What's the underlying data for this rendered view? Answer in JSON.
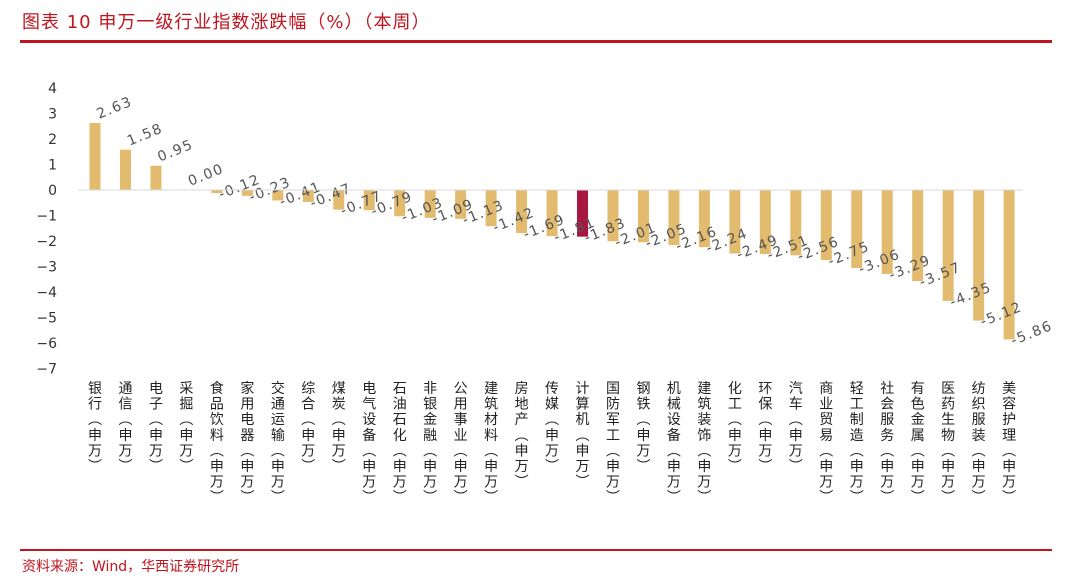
{
  "header": {
    "title": "图表 10 申万一级行业指数涨跌幅（%）（本周）"
  },
  "footer": {
    "source": "资料来源：Wind，华西证券研究所"
  },
  "colors": {
    "bar": "#e2bb6f",
    "highlight": "#a8173f",
    "accent": "#c0141e"
  },
  "chart_data": {
    "type": "bar",
    "title": "申万一级行业指数涨跌幅（%）（本周）",
    "xlabel": "",
    "ylabel": "",
    "ylim": [
      -7,
      4
    ],
    "yticks": [
      4,
      3,
      2,
      1,
      0,
      -1,
      -2,
      -3,
      -4,
      -5,
      -6,
      -7
    ],
    "grid": false,
    "legend": "none",
    "highlight_category": "计算机(申万)",
    "categories": [
      "银行(申万)",
      "通信(申万)",
      "电子(申万)",
      "采掘(申万)",
      "食品饮料(申万)",
      "家用电器(申万)",
      "交通运输(申万)",
      "综合(申万)",
      "煤炭(申万)",
      "电气设备(申万)",
      "石油石化(申万)",
      "非银金融(申万)",
      "公用事业(申万)",
      "建筑材料(申万)",
      "房地产(申万)",
      "传媒(申万)",
      "计算机(申万)",
      "国防军工(申万)",
      "钢铁(申万)",
      "机械设备(申万)",
      "建筑装饰(申万)",
      "化工(申万)",
      "环保(申万)",
      "汽车(申万)",
      "商业贸易(申万)",
      "轻工制造(申万)",
      "社会服务(申万)",
      "有色金属(申万)",
      "医药生物(申万)",
      "纺织服装(申万)",
      "美容护理(申万)"
    ],
    "values": [
      2.63,
      1.58,
      0.95,
      0.0,
      -0.12,
      -0.23,
      -0.41,
      -0.47,
      -0.77,
      -0.79,
      -1.03,
      -1.09,
      -1.13,
      -1.42,
      -1.69,
      -1.81,
      -1.83,
      -2.01,
      -2.05,
      -2.16,
      -2.24,
      -2.49,
      -2.51,
      -2.56,
      -2.75,
      -3.06,
      -3.29,
      -3.57,
      -4.35,
      -5.12,
      -5.86
    ],
    "labels": [
      "2.63",
      "1.58",
      "0.95",
      "0.00",
      "-0.12",
      "-0.23",
      "-0.41",
      "-0.47",
      "-0.77",
      "-0.79",
      "-1.03",
      "-1.09",
      "-1.13",
      "-1.42",
      "-1.69",
      "-1.81",
      "-1.83",
      "-2.01",
      "-2.05",
      "-2.16",
      "-2.24",
      "-2.49",
      "-2.51",
      "-2.56",
      "-2.75",
      "-3.06",
      "-3.29",
      "-3.57",
      "-4.35",
      "-5.12",
      "-5.86"
    ]
  }
}
